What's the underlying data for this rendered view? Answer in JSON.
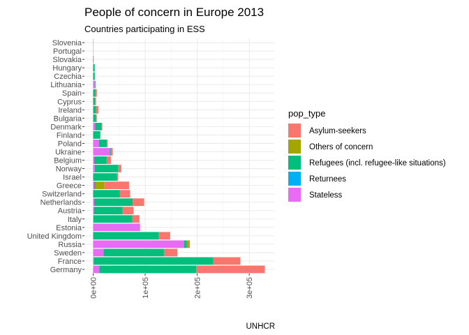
{
  "chart_data": {
    "type": "bar",
    "orientation": "horizontal",
    "stacked": true,
    "title": "People of concern in Europe 2013",
    "subtitle": "Countries participating in ESS",
    "caption": "UNHCR",
    "legend_title": "pop_type",
    "legend_position": "right",
    "grid": true,
    "xlim": [
      0,
      330000
    ],
    "x_ticks": [
      {
        "value": 0,
        "label": "0e+00"
      },
      {
        "value": 100000,
        "label": "1e+05"
      },
      {
        "value": 200000,
        "label": "2e+05"
      },
      {
        "value": 300000,
        "label": "3e+05"
      }
    ],
    "categories": [
      "Slovenia",
      "Portugal",
      "Slovakia",
      "Hungary",
      "Czechia",
      "Lithuania",
      "Spain",
      "Cyprus",
      "Ireland",
      "Bulgaria",
      "Denmark",
      "Finland",
      "Poland",
      "Ukraine",
      "Belgium",
      "Norway",
      "Israel",
      "Greece",
      "Switzerland",
      "Netherlands",
      "Austria",
      "Italy",
      "Estonia",
      "United Kingdom",
      "Russia",
      "Sweden",
      "France",
      "Germany"
    ],
    "stack_order": [
      "Stateless",
      "Returnees",
      "Refugees (incl. refugee-like situations)",
      "Others of concern",
      "Asylum-seekers"
    ],
    "series": [
      {
        "name": "Asylum-seekers",
        "color": "#F8766D",
        "values": [
          100,
          100,
          300,
          800,
          700,
          100,
          3000,
          2000,
          4500,
          1500,
          1500,
          1500,
          2000,
          3500,
          8000,
          6000,
          2000,
          48000,
          20000,
          22000,
          21000,
          13500,
          200,
          22000,
          2000,
          26000,
          52000,
          132000
        ]
      },
      {
        "name": "Others of concern",
        "color": "#A3A500",
        "values": [
          0,
          0,
          0,
          0,
          0,
          0,
          0,
          0,
          0,
          0,
          0,
          0,
          0,
          0,
          0,
          0,
          0,
          17000,
          0,
          0,
          0,
          0,
          0,
          0,
          4000,
          0,
          0,
          0
        ]
      },
      {
        "name": "Refugees (incl. refugee-like situations)",
        "color": "#00BF7D",
        "values": [
          400,
          300,
          800,
          2500,
          3000,
          1000,
          4000,
          3500,
          5500,
          5500,
          12000,
          13000,
          15000,
          2000,
          24000,
          45000,
          46000,
          2000,
          51000,
          74000,
          55000,
          75000,
          0,
          126000,
          5000,
          116000,
          230000,
          186000
        ]
      },
      {
        "name": "Returnees",
        "color": "#00B0F6",
        "values": [
          0,
          0,
          0,
          0,
          0,
          0,
          0,
          0,
          0,
          0,
          0,
          0,
          0,
          0,
          0,
          0,
          0,
          0,
          0,
          0,
          0,
          0,
          0,
          0,
          0,
          0,
          0,
          0
        ]
      },
      {
        "name": "Stateless",
        "color": "#E76BF3",
        "values": [
          0,
          0,
          0,
          0,
          0,
          3500,
          0,
          0,
          0,
          0,
          4000,
          0,
          11000,
          32000,
          2000,
          3000,
          0,
          2000,
          0,
          2000,
          1500,
          500,
          90000,
          0,
          175000,
          20000,
          1000,
          12000
        ]
      }
    ]
  }
}
